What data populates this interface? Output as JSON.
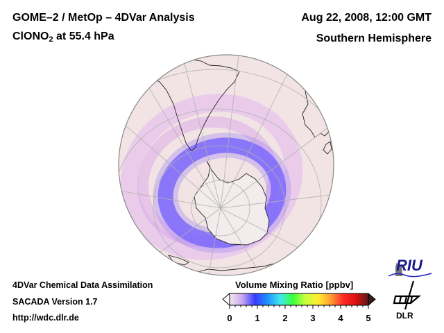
{
  "header": {
    "title_line1": "GOME–2 / MetOp – 4DVar Analysis",
    "species_prefix": "ClONO",
    "species_subscript": "2",
    "species_suffix": " at 55.4 hPa",
    "date": "Aug 22, 2008, 12:00 GMT",
    "region": "Southern Hemisphere"
  },
  "footer": {
    "line1": "4DVar Chemical Data Assimilation",
    "line2": "SACADA Version 1.7",
    "line3": "http://wdc.dlr.de"
  },
  "colorbar": {
    "title": "Volume Mixing Ratio [ppbv]",
    "min": 0,
    "max": 5,
    "ticks": [
      "0",
      "1",
      "2",
      "3",
      "4",
      "5"
    ],
    "colors": [
      "#f5e6ea",
      "#c8a8f0",
      "#3a3aff",
      "#1f8fff",
      "#3fe8f0",
      "#3cff3c",
      "#c8ff3c",
      "#ffee30",
      "#ffa030",
      "#ff2a2a",
      "#e01010",
      "#5a1a1a"
    ],
    "extend": "both"
  },
  "map": {
    "projection": "orthographic",
    "hemisphere": "south",
    "ocean_color": "#f2e4e4",
    "grid_color": "#b0b0b0",
    "coast_color": "#222222",
    "feature": "ClONO2 collar ring around Antarctic polar vortex, ~0.4-0.8 ppbv"
  },
  "logos": {
    "riu": "RIU",
    "dlr": "DLR"
  }
}
